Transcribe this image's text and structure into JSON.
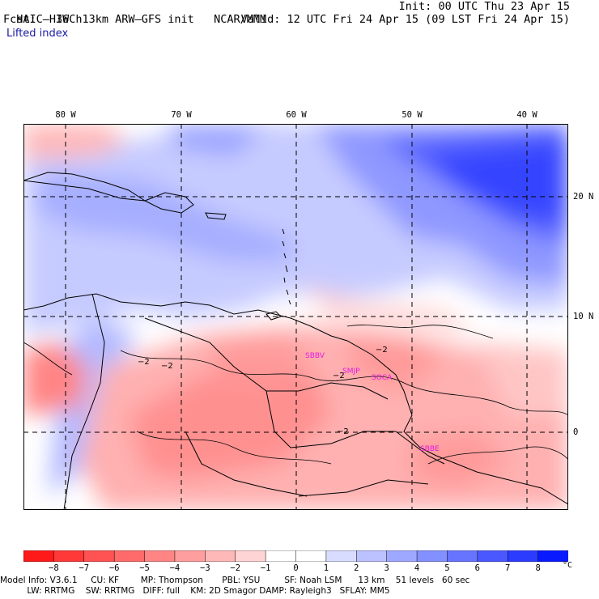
{
  "header": {
    "model": "HAIC–HIWC 13km ARW–GFS init",
    "org": "NCAR/MMM",
    "init": "Init: 00 UTC Thu 23 Apr 15",
    "fcst": "Fcst:   36 h",
    "valid": "Valid: 12 UTC Fri 24 Apr 15 (09 LST Fri 24 Apr 15)",
    "field": "Lifted index"
  },
  "map": {
    "lon_labels": [
      "80 W",
      "70 W",
      "60 W",
      "50 W",
      "40 W"
    ],
    "lat_labels": [
      "20 N",
      "10 N",
      "0"
    ],
    "contour_labels": [
      "−2",
      "−2",
      "−2",
      "−2",
      "−2"
    ],
    "station_labels": [
      "SBBV",
      "SMJP",
      "SOCA",
      "SBBE"
    ]
  },
  "colorbar": {
    "labels": [
      "−8",
      "−7",
      "−6",
      "−5",
      "−4",
      "−3",
      "−2",
      "−1",
      "0",
      "1",
      "2",
      "3",
      "4",
      "5",
      "6",
      "7",
      "8"
    ],
    "unit": "°C",
    "colors": [
      "#ff1a1a",
      "#ff3838",
      "#ff5252",
      "#ff6b6b",
      "#ff8585",
      "#ff9e9e",
      "#ffb8b8",
      "#ffd4d4",
      "#ffffff",
      "#ffffff",
      "#d8dcff",
      "#bcc2ff",
      "#9fa8ff",
      "#8390ff",
      "#6774ff",
      "#4a58ff",
      "#2c3cff",
      "#0a1aff"
    ]
  },
  "footer": {
    "line1": "Model Info: V3.6.1     CU: KF        MP: Thompson       PBL: YSU         SF: Noah LSM      13 km    51 levels   60 sec",
    "line2": "          LW: RRTMG    SW: RRTMG   DIFF: full    KM: 2D Smagor DAMP: Rayleigh3   SFLAY: MM5"
  }
}
